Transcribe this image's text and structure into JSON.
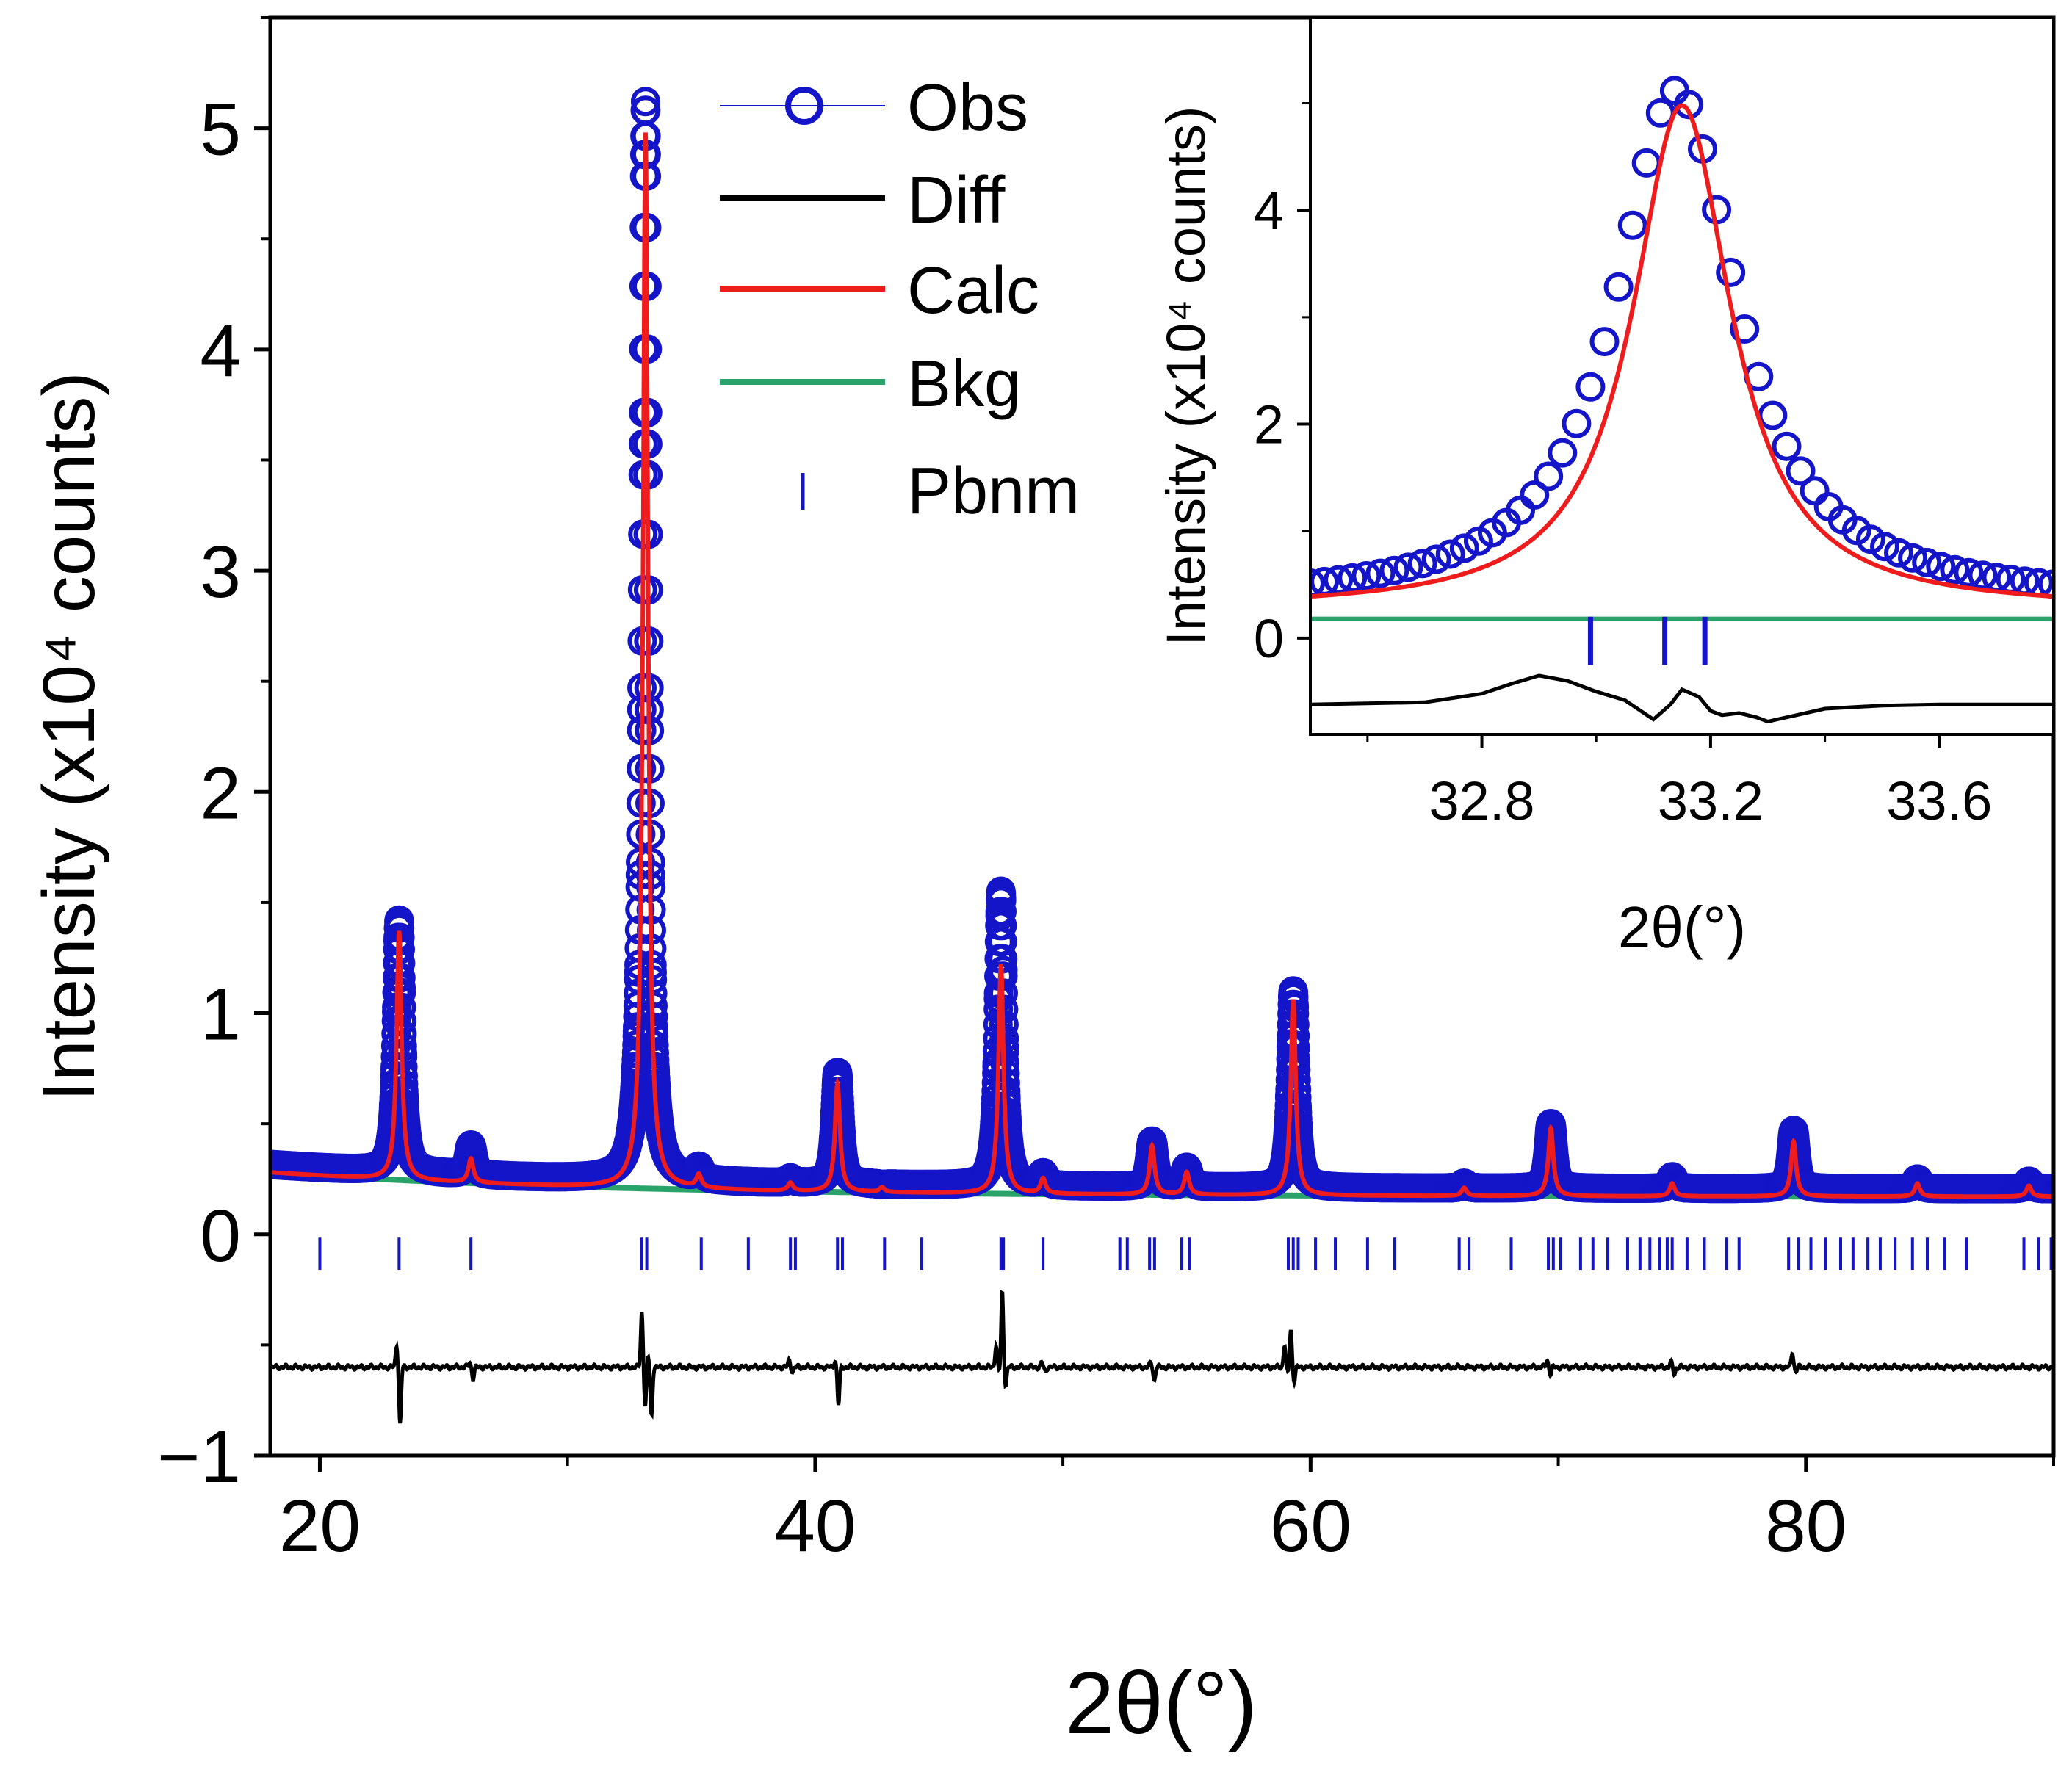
{
  "chart_data": [
    {
      "type": "line",
      "panel": "main",
      "xlabel": "2θ(°)",
      "ylabel": "Intensity (x10⁴ counts)",
      "xlim": [
        18,
        90
      ],
      "ylim": [
        -1,
        5.5
      ],
      "xticks": [
        20,
        40,
        60,
        80
      ],
      "xtick_labels": [
        "20",
        "40",
        "60",
        "80"
      ],
      "yticks": [
        -1,
        0,
        1,
        2,
        3,
        4,
        5
      ],
      "ytick_labels": [
        "−1",
        "0",
        "1",
        "2",
        "3",
        "4",
        "5"
      ],
      "grid": false,
      "legend": [
        {
          "key": "obs",
          "label": "Obs"
        },
        {
          "key": "diff",
          "label": "Diff"
        },
        {
          "key": "calc",
          "label": "Calc"
        },
        {
          "key": "bkg",
          "label": "Bkg"
        },
        {
          "key": "pbnm",
          "label": "Pbnm"
        }
      ],
      "legend_position": "top-center",
      "background": {
        "at_18": 0.28,
        "at_90": 0.17
      },
      "diff_offset": -0.6,
      "peaks": [
        {
          "pos": 23.2,
          "obs": 1.42,
          "calc": 1.37
        },
        {
          "pos": 26.1,
          "obs": 0.4,
          "calc": 0.34
        },
        {
          "pos": 33.15,
          "obs": 5.12,
          "calc": 4.98
        },
        {
          "pos": 35.3,
          "obs": 0.29,
          "calc": 0.26
        },
        {
          "pos": 39.0,
          "obs": 0.25,
          "calc": 0.23
        },
        {
          "pos": 40.9,
          "obs": 0.73,
          "calc": 0.68
        },
        {
          "pos": 42.7,
          "obs": 0.22,
          "calc": 0.21
        },
        {
          "pos": 47.5,
          "obs": 1.55,
          "calc": 1.22
        },
        {
          "pos": 49.2,
          "obs": 0.27,
          "calc": 0.25
        },
        {
          "pos": 53.6,
          "obs": 0.42,
          "calc": 0.4
        },
        {
          "pos": 55.0,
          "obs": 0.3,
          "calc": 0.28
        },
        {
          "pos": 59.3,
          "obs": 1.1,
          "calc": 1.06
        },
        {
          "pos": 66.2,
          "obs": 0.23,
          "calc": 0.21
        },
        {
          "pos": 69.7,
          "obs": 0.5,
          "calc": 0.48
        },
        {
          "pos": 74.6,
          "obs": 0.26,
          "calc": 0.23
        },
        {
          "pos": 79.5,
          "obs": 0.47,
          "calc": 0.42
        },
        {
          "pos": 84.5,
          "obs": 0.25,
          "calc": 0.23
        },
        {
          "pos": 89.0,
          "obs": 0.24,
          "calc": 0.22
        }
      ],
      "reflections_2theta": [
        20.0,
        23.2,
        26.1,
        33.0,
        33.2,
        35.4,
        37.3,
        39.0,
        39.2,
        40.9,
        41.1,
        42.8,
        44.3,
        47.5,
        47.6,
        49.2,
        52.3,
        52.6,
        53.5,
        53.7,
        54.8,
        55.1,
        59.1,
        59.3,
        59.5,
        60.2,
        61.0,
        62.3,
        63.4,
        66.0,
        66.4,
        68.1,
        69.6,
        69.8,
        70.1,
        70.9,
        71.4,
        72.0,
        72.8,
        73.3,
        73.7,
        74.1,
        74.4,
        74.6,
        75.2,
        75.9,
        76.8,
        77.3,
        79.3,
        79.7,
        80.2,
        80.8,
        81.4,
        81.9,
        82.5,
        83.0,
        83.6,
        84.3,
        84.9,
        85.6,
        86.5,
        88.8,
        89.4,
        89.9
      ],
      "diff_features": [
        {
          "pos": 23.15,
          "up": 0.1,
          "down": -0.26
        },
        {
          "pos": 26.1,
          "up": 0.02,
          "down": -0.05
        },
        {
          "pos": 33.05,
          "up": 0.25,
          "down": -0.18
        },
        {
          "pos": 33.3,
          "up": 0.05,
          "down": -0.22
        },
        {
          "pos": 39.0,
          "up": 0.03,
          "down": -0.02
        },
        {
          "pos": 40.85,
          "up": 0.03,
          "down": -0.17
        },
        {
          "pos": 47.35,
          "up": 0.1,
          "down": -0.02
        },
        {
          "pos": 47.6,
          "up": 0.34,
          "down": -0.08
        },
        {
          "pos": 49.2,
          "up": 0.02,
          "down": -0.02
        },
        {
          "pos": 53.6,
          "up": 0.02,
          "down": -0.06
        },
        {
          "pos": 59.0,
          "up": 0.1,
          "down": -0.03
        },
        {
          "pos": 59.25,
          "up": 0.17,
          "down": -0.06
        },
        {
          "pos": 69.6,
          "up": 0.03,
          "down": -0.03
        },
        {
          "pos": 74.6,
          "up": 0.02,
          "down": -0.03
        },
        {
          "pos": 79.5,
          "up": 0.07,
          "down": -0.02
        }
      ]
    },
    {
      "type": "line",
      "panel": "inset",
      "xlabel": "2θ(°)",
      "ylabel": "Intensity (x10⁴ counts)",
      "xlim": [
        32.5,
        33.8
      ],
      "ylim": [
        -0.9,
        5.8
      ],
      "xticks": [
        32.8,
        33.2,
        33.6
      ],
      "xtick_labels": [
        "32.8",
        "33.2",
        "33.6"
      ],
      "yticks": [
        0,
        2,
        4
      ],
      "ytick_labels": [
        "0",
        "2",
        "4"
      ],
      "grid": false,
      "background": 0.18,
      "calc_peak": {
        "center": 33.15,
        "height": 4.98
      },
      "obs_peak": {
        "center": 33.14,
        "height": 5.12
      },
      "reflections_2theta": [
        32.99,
        33.12,
        33.19
      ],
      "diff": {
        "x": [
          32.5,
          32.7,
          32.8,
          32.85,
          32.9,
          32.95,
          33.0,
          33.05,
          33.1,
          33.13,
          33.15,
          33.18,
          33.2,
          33.22,
          33.25,
          33.28,
          33.3,
          33.35,
          33.4,
          33.5,
          33.6,
          33.7,
          33.8
        ],
        "y": [
          -0.62,
          -0.6,
          -0.52,
          -0.43,
          -0.35,
          -0.4,
          -0.5,
          -0.58,
          -0.76,
          -0.62,
          -0.48,
          -0.55,
          -0.68,
          -0.72,
          -0.7,
          -0.74,
          -0.78,
          -0.72,
          -0.66,
          -0.63,
          -0.62,
          -0.62,
          -0.62
        ]
      }
    }
  ]
}
